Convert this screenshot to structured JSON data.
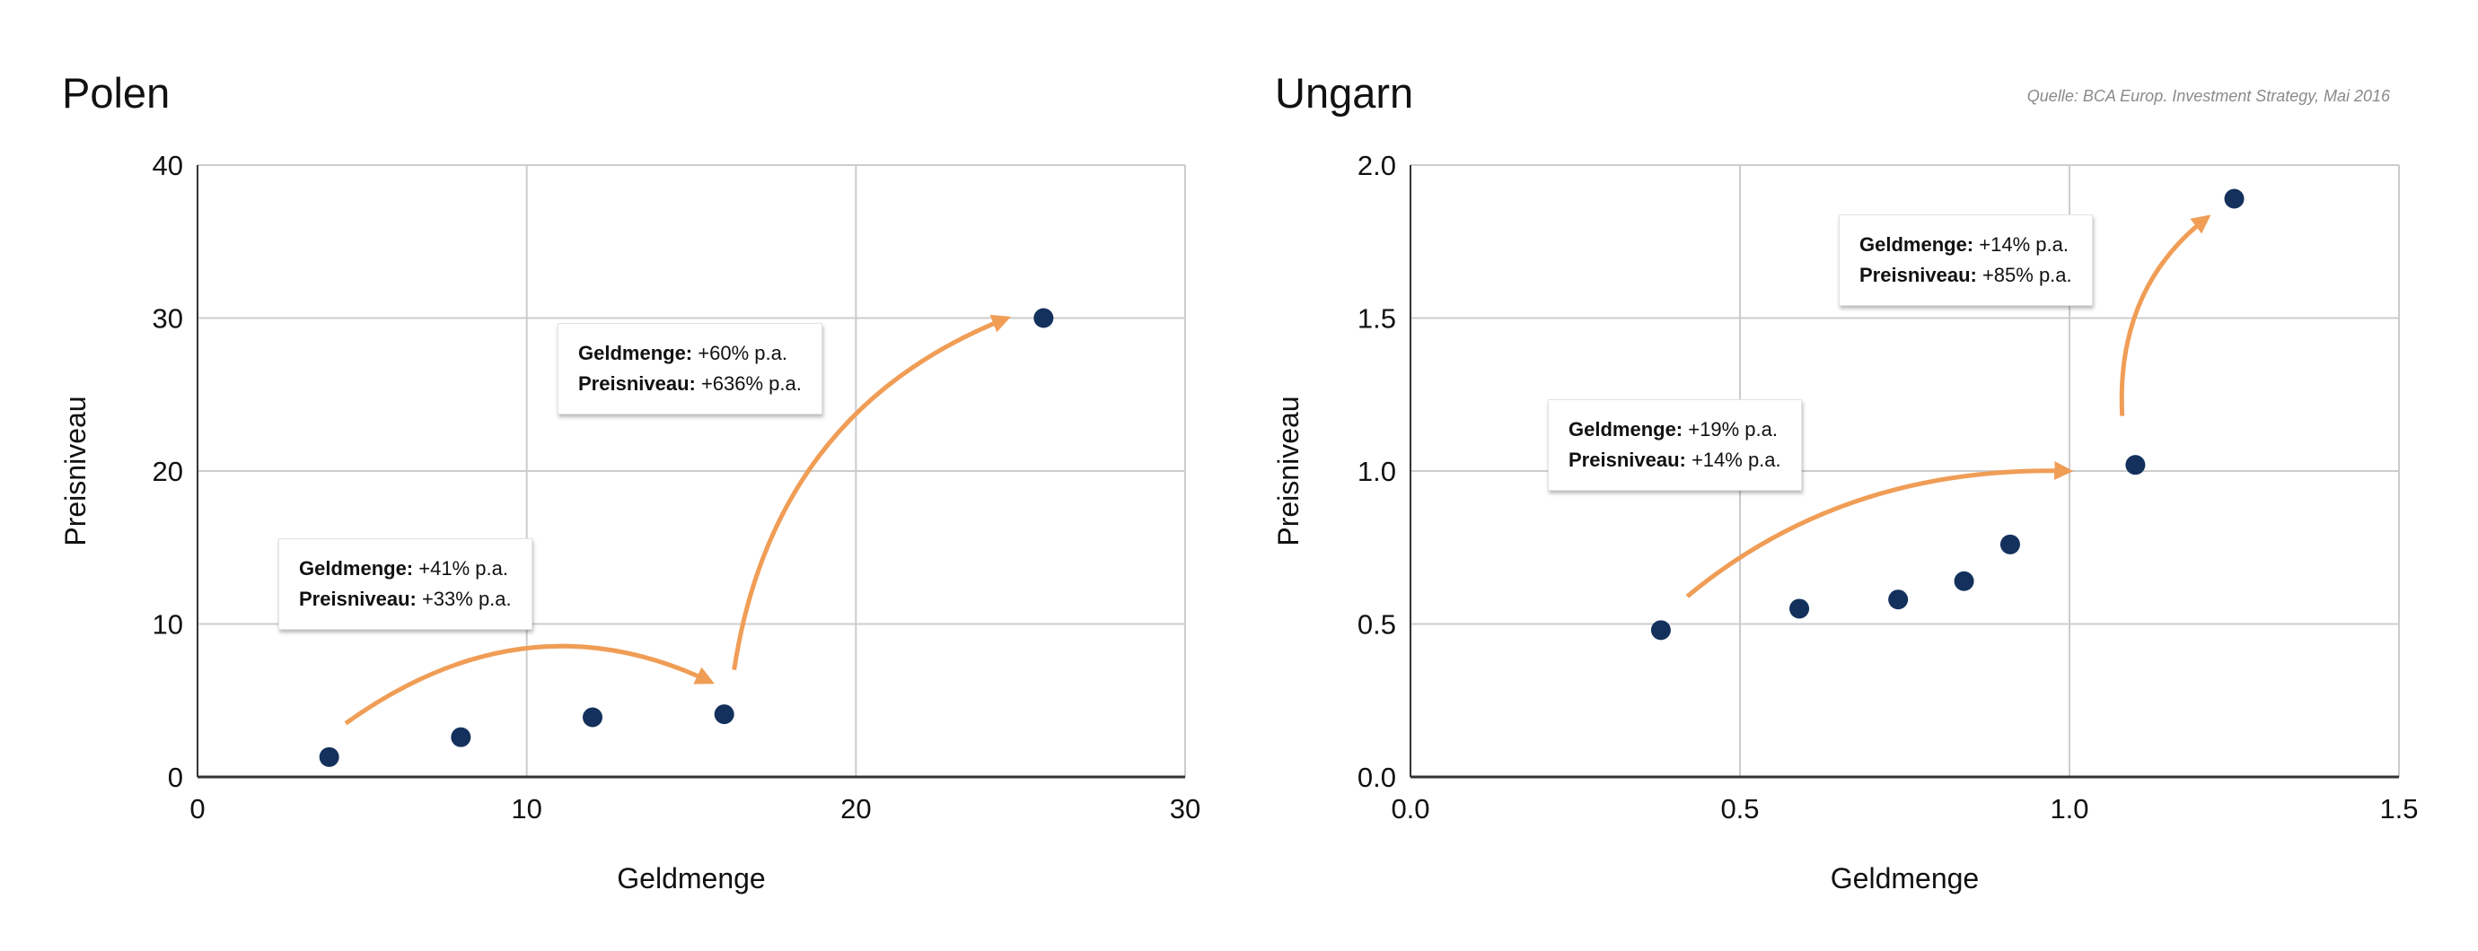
{
  "source_note": "Quelle: BCA Europ. Investment Strategy, Mai 2016",
  "colors": {
    "point": "#13315c",
    "arrow": "#f09d56",
    "grid": "#cccccc",
    "axis": "#333333"
  },
  "chart_data": [
    {
      "type": "scatter",
      "title": "Polen",
      "xlabel": "Geldmenge",
      "ylabel": "Preisniveau",
      "xlim": [
        0,
        30
      ],
      "ylim": [
        0,
        40
      ],
      "x_ticks": [
        "0",
        "10",
        "20",
        "30"
      ],
      "y_ticks": [
        "0",
        "10",
        "20",
        "30",
        "40"
      ],
      "grid": true,
      "points": [
        {
          "x": 4,
          "y": 1.3
        },
        {
          "x": 8,
          "y": 2.6
        },
        {
          "x": 12,
          "y": 3.9
        },
        {
          "x": 16,
          "y": 4.1
        },
        {
          "x": 25.7,
          "y": 30
        }
      ],
      "annotations": [
        {
          "line1_label": "Geldmenge:",
          "line1_value": " +41% p.a.",
          "line2_label": "Preisniveau:",
          "line2_value": " +33% p.a."
        },
        {
          "line1_label": "Geldmenge:",
          "line1_value": " +60% p.a.",
          "line2_label": "Preisniveau:",
          "line2_value": " +636% p.a."
        }
      ]
    },
    {
      "type": "scatter",
      "title": "Ungarn",
      "xlabel": "Geldmenge",
      "ylabel": "Preisniveau",
      "xlim": [
        0,
        1.5
      ],
      "ylim": [
        0,
        2
      ],
      "x_ticks": [
        "0.0",
        "0.5",
        "1.0",
        "1.5"
      ],
      "y_ticks": [
        "0.0",
        "0.5",
        "1.0",
        "1.5",
        "2.0"
      ],
      "grid": true,
      "points": [
        {
          "x": 0.38,
          "y": 0.48
        },
        {
          "x": 0.59,
          "y": 0.55
        },
        {
          "x": 0.74,
          "y": 0.58
        },
        {
          "x": 0.84,
          "y": 0.64
        },
        {
          "x": 0.91,
          "y": 0.76
        },
        {
          "x": 1.1,
          "y": 1.02
        },
        {
          "x": 1.25,
          "y": 1.89
        }
      ],
      "annotations": [
        {
          "line1_label": "Geldmenge:",
          "line1_value": " +19% p.a.",
          "line2_label": "Preisniveau:",
          "line2_value": " +14% p.a."
        },
        {
          "line1_label": "Geldmenge:",
          "line1_value": " +14% p.a.",
          "line2_label": "Preisniveau:",
          "line2_value": " +85% p.a."
        }
      ]
    }
  ]
}
